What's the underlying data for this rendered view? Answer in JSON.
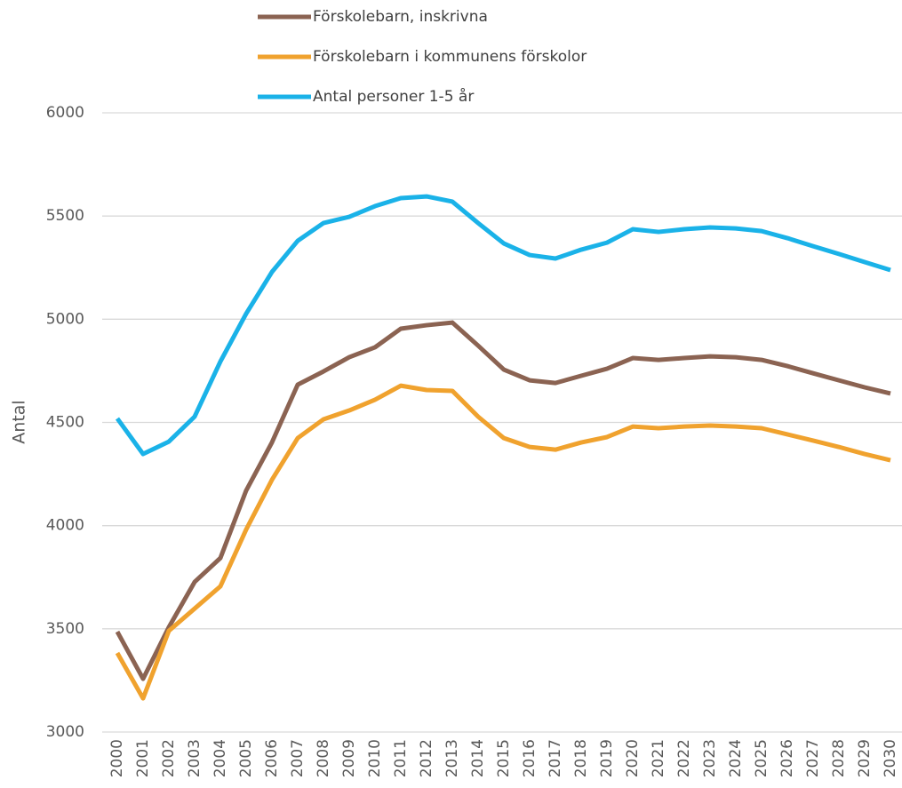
{
  "chart_data": {
    "type": "line",
    "y_label": "Antal",
    "categories": [
      "2000",
      "2001",
      "2002",
      "2003",
      "2004",
      "2005",
      "2006",
      "2007",
      "2008",
      "2009",
      "2010",
      "2011",
      "2012",
      "2013",
      "2014",
      "2015",
      "2016",
      "2017",
      "2018",
      "2019",
      "2020",
      "2021",
      "2022",
      "2023",
      "2024",
      "2025",
      "2026",
      "2027",
      "2028",
      "2029",
      "2030"
    ],
    "series": [
      {
        "name": "Förskolebarn, inskrivna",
        "color": "#8b6352",
        "values": [
          3486,
          3258,
          3508,
          3727,
          3843,
          4170,
          4403,
          4683,
          4747,
          4816,
          4864,
          4954,
          4971,
          4984,
          4872,
          4756,
          4704,
          4691,
          4726,
          4760,
          4812,
          4803,
          4812,
          4820,
          4816,
          4803,
          4773,
          4738,
          4704,
          4670,
          4640
        ]
      },
      {
        "name": "Förskolebarn i kommunens förskolor",
        "color": "#f0a22e",
        "values": [
          3383,
          3163,
          3490,
          3598,
          3706,
          3981,
          4222,
          4424,
          4515,
          4558,
          4610,
          4678,
          4657,
          4653,
          4528,
          4424,
          4381,
          4368,
          4403,
          4429,
          4480,
          4472,
          4480,
          4485,
          4480,
          4472,
          4442,
          4412,
          4381,
          4347,
          4317
        ]
      },
      {
        "name": "Antal personer 1-5 år",
        "color": "#1ab2e8",
        "values": [
          4519,
          4347,
          4407,
          4528,
          4795,
          5027,
          5229,
          5380,
          5466,
          5496,
          5548,
          5587,
          5595,
          5570,
          5466,
          5367,
          5311,
          5294,
          5337,
          5371,
          5436,
          5423,
          5436,
          5445,
          5440,
          5427,
          5393,
          5354,
          5316,
          5277,
          5238
        ]
      }
    ],
    "ylim": [
      3000,
      6000
    ],
    "yticks": [
      3000,
      3500,
      4000,
      4500,
      5000,
      5500,
      6000
    ],
    "grid": true,
    "legend": "top"
  }
}
